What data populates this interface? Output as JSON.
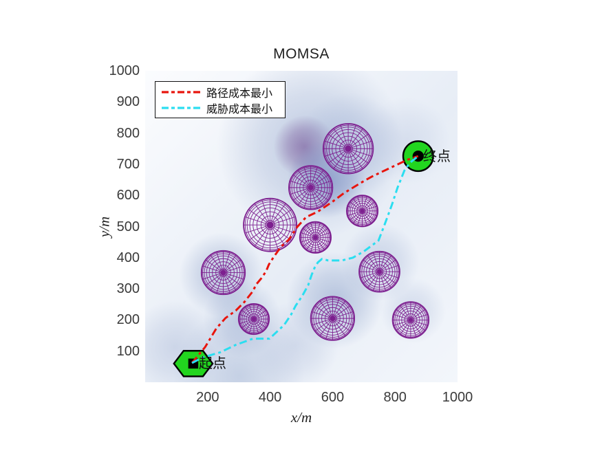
{
  "figure": {
    "background": "#ffffff"
  },
  "chart_data": {
    "type": "line",
    "title": "MOMSA",
    "xlabel": "x/m",
    "ylabel": "y/m",
    "xlim": [
      0,
      1000
    ],
    "ylim": [
      0,
      1000
    ],
    "xticks": [
      200,
      400,
      600,
      800,
      1000
    ],
    "yticks": [
      100,
      200,
      300,
      400,
      500,
      600,
      700,
      800,
      900,
      1000
    ],
    "grid": false,
    "legend_position": "top-left",
    "legend": {
      "entries": [
        {
          "label": "路径成本最小",
          "color": "#e8150d",
          "style": "dash-dot"
        },
        {
          "label": "威胁成本最小",
          "color": "#2bdef0",
          "style": "dash-dot"
        }
      ]
    },
    "series": [
      {
        "name": "路径成本最小",
        "color": "#e8150d",
        "dash": "dash-dot",
        "points": [
          [
            150,
            62
          ],
          [
            192,
            113
          ],
          [
            228,
            173
          ],
          [
            257,
            206
          ],
          [
            290,
            230
          ],
          [
            317,
            257
          ],
          [
            343,
            290
          ],
          [
            357,
            316
          ],
          [
            372,
            334
          ],
          [
            387,
            356
          ],
          [
            396,
            378
          ],
          [
            410,
            400
          ],
          [
            424,
            420
          ],
          [
            440,
            440
          ],
          [
            460,
            458
          ],
          [
            487,
            499
          ],
          [
            515,
            530
          ],
          [
            553,
            548
          ],
          [
            600,
            580
          ],
          [
            636,
            607
          ],
          [
            690,
            640
          ],
          [
            725,
            660
          ],
          [
            790,
            691
          ],
          [
            841,
            715
          ],
          [
            874,
            726
          ]
        ]
      },
      {
        "name": "威胁成本最小",
        "color": "#2bdef0",
        "dash": "dash-dot",
        "points": [
          [
            150,
            62
          ],
          [
            185,
            80
          ],
          [
            240,
            96
          ],
          [
            290,
            120
          ],
          [
            345,
            140
          ],
          [
            398,
            140
          ],
          [
            445,
            184
          ],
          [
            467,
            217
          ],
          [
            482,
            246
          ],
          [
            504,
            279
          ],
          [
            522,
            312
          ],
          [
            533,
            345
          ],
          [
            542,
            367
          ],
          [
            553,
            385
          ],
          [
            566,
            396
          ],
          [
            586,
            391
          ],
          [
            630,
            391
          ],
          [
            665,
            400
          ],
          [
            700,
            420
          ],
          [
            747,
            455
          ],
          [
            768,
            510
          ],
          [
            790,
            570
          ],
          [
            808,
            625
          ],
          [
            830,
            680
          ],
          [
            848,
            705
          ],
          [
            874,
            726
          ]
        ]
      }
    ],
    "obstacles": {
      "color": "#7d1f8f",
      "items": [
        {
          "x": 650,
          "y": 750,
          "r": 80
        },
        {
          "x": 530,
          "y": 625,
          "r": 70
        },
        {
          "x": 695,
          "y": 550,
          "r": 50
        },
        {
          "x": 400,
          "y": 505,
          "r": 85
        },
        {
          "x": 250,
          "y": 352,
          "r": 70
        },
        {
          "x": 545,
          "y": 465,
          "r": 50
        },
        {
          "x": 750,
          "y": 355,
          "r": 65
        },
        {
          "x": 348,
          "y": 203,
          "r": 49
        },
        {
          "x": 600,
          "y": 205,
          "r": 70
        },
        {
          "x": 850,
          "y": 200,
          "r": 58
        }
      ]
    },
    "threat_blobs": [
      {
        "x": 530,
        "y": 760,
        "r": 300,
        "color": "#97a9ce",
        "alpha": 0.55
      },
      {
        "x": 511,
        "y": 757,
        "r": 100,
        "color": "#8a72aa",
        "alpha": 0.85
      },
      {
        "x": 581,
        "y": 652,
        "r": 125,
        "color": "#7386bd",
        "alpha": 0.7
      },
      {
        "x": 655,
        "y": 760,
        "r": 170,
        "color": "#a3b4d6",
        "alpha": 0.5
      },
      {
        "x": 244,
        "y": 345,
        "r": 135,
        "color": "#93a5cb",
        "alpha": 0.55
      },
      {
        "x": 310,
        "y": 205,
        "r": 125,
        "color": "#97a9ce",
        "alpha": 0.5
      },
      {
        "x": 608,
        "y": 263,
        "r": 155,
        "color": "#8a9fc8",
        "alpha": 0.55
      },
      {
        "x": 753,
        "y": 385,
        "r": 125,
        "color": "#9fb0d3",
        "alpha": 0.45
      },
      {
        "x": 857,
        "y": 230,
        "r": 105,
        "color": "#a9b8d8",
        "alpha": 0.4
      },
      {
        "x": 96,
        "y": 113,
        "r": 150,
        "color": "#a9b7d6",
        "alpha": 0.45
      },
      {
        "x": 835,
        "y": 775,
        "r": 140,
        "color": "#b5c1dd",
        "alpha": 0.35
      },
      {
        "x": 300,
        "y": 20,
        "r": 210,
        "color": "#8fa3c9",
        "alpha": 0.4
      },
      {
        "x": 480,
        "y": 120,
        "r": 140,
        "color": "#aab8d7",
        "alpha": 0.4
      }
    ],
    "markers": {
      "start": {
        "x": 154,
        "y": 60,
        "label": "起点",
        "shape": "hexagon",
        "fill": "#22d51f",
        "size": 62,
        "center_marker": "square"
      },
      "end": {
        "x": 874,
        "y": 726,
        "label": "终点",
        "shape": "circle",
        "fill": "#22d51f",
        "size": 48,
        "center_marker": "dot"
      }
    }
  }
}
